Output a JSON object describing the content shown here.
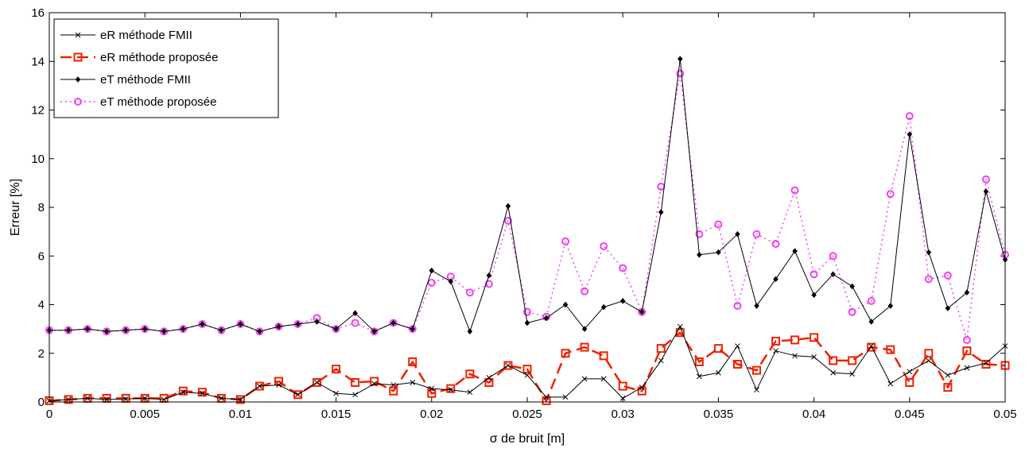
{
  "chart_data": {
    "type": "line",
    "xlabel": "σ de bruit [m]",
    "ylabel": "Erreur [%]",
    "xlim": [
      0,
      0.05
    ],
    "ylim": [
      0,
      16
    ],
    "xticks": [
      0,
      0.005,
      0.01,
      0.015,
      0.02,
      0.025,
      0.03,
      0.035,
      0.04,
      0.045,
      0.05
    ],
    "xtick_labels": [
      "0",
      "0.005",
      "0.01",
      "0.015",
      "0.02",
      "0.025",
      "0.03",
      "0.035",
      "0.04",
      "0.045",
      "0.05"
    ],
    "yticks": [
      0,
      2,
      4,
      6,
      8,
      10,
      12,
      14,
      16
    ],
    "ytick_labels": [
      "0",
      "2",
      "4",
      "6",
      "8",
      "10",
      "12",
      "14",
      "16"
    ],
    "grid": false,
    "legend_position": "top-left",
    "x": [
      0,
      0.001,
      0.002,
      0.003,
      0.004,
      0.005,
      0.006,
      0.007,
      0.008,
      0.009,
      0.01,
      0.011,
      0.012,
      0.013,
      0.014,
      0.015,
      0.016,
      0.017,
      0.018,
      0.019,
      0.02,
      0.021,
      0.022,
      0.023,
      0.024,
      0.025,
      0.026,
      0.027,
      0.028,
      0.029,
      0.03,
      0.031,
      0.032,
      0.033,
      0.034,
      0.035,
      0.036,
      0.037,
      0.038,
      0.039,
      0.04,
      0.041,
      0.042,
      0.043,
      0.044,
      0.045,
      0.046,
      0.047,
      0.048,
      0.049,
      0.05
    ],
    "series": [
      {
        "name": "eR méthode FMII",
        "color": "#000000",
        "marker": "x",
        "line_style": "solid",
        "values": [
          0.05,
          0.1,
          0.15,
          0.1,
          0.12,
          0.15,
          0.1,
          0.4,
          0.35,
          0.15,
          0.1,
          0.65,
          0.7,
          0.3,
          0.8,
          0.35,
          0.3,
          0.75,
          0.7,
          0.8,
          0.55,
          0.5,
          0.4,
          1.0,
          1.5,
          1.1,
          0.2,
          0.2,
          0.95,
          0.95,
          0.15,
          0.6,
          1.7,
          3.1,
          1.05,
          1.2,
          2.3,
          0.5,
          2.1,
          1.9,
          1.85,
          1.2,
          1.15,
          2.3,
          0.75,
          1.25,
          1.7,
          1.1,
          1.4,
          1.6,
          2.3
        ]
      },
      {
        "name": "eR méthode proposée",
        "color": "#ee2200",
        "marker": "square",
        "line_style": "dashed",
        "values": [
          0.05,
          0.1,
          0.15,
          0.15,
          0.15,
          0.15,
          0.15,
          0.45,
          0.4,
          0.15,
          0.1,
          0.65,
          0.85,
          0.3,
          0.8,
          1.35,
          0.8,
          0.85,
          0.45,
          1.65,
          0.35,
          0.55,
          1.15,
          0.8,
          1.5,
          1.35,
          0.05,
          2.0,
          2.25,
          1.9,
          0.65,
          0.45,
          2.2,
          2.85,
          1.65,
          2.2,
          1.55,
          1.3,
          2.5,
          2.55,
          2.65,
          1.7,
          1.7,
          2.25,
          2.15,
          0.8,
          2.0,
          0.6,
          2.1,
          1.55,
          1.5
        ]
      },
      {
        "name": "eT méthode FMII",
        "color": "#000000",
        "marker": "diamond",
        "line_style": "solid",
        "values": [
          2.95,
          2.95,
          3.0,
          2.9,
          2.95,
          3.0,
          2.9,
          3.0,
          3.2,
          2.95,
          3.2,
          2.9,
          3.1,
          3.2,
          3.3,
          3.0,
          3.65,
          2.9,
          3.25,
          3.0,
          5.4,
          4.95,
          2.9,
          5.2,
          8.05,
          3.25,
          3.45,
          4.0,
          3.0,
          3.9,
          4.15,
          3.7,
          7.8,
          14.1,
          6.05,
          6.15,
          6.9,
          3.95,
          5.05,
          6.2,
          4.4,
          5.25,
          4.75,
          3.3,
          3.95,
          11.0,
          6.15,
          3.85,
          4.5,
          8.65,
          5.85
        ]
      },
      {
        "name": "eT méthode proposée",
        "color": "#ee44ee",
        "marker": "circle",
        "line_style": "dotted",
        "values": [
          2.95,
          2.95,
          3.0,
          2.9,
          2.95,
          3.0,
          2.9,
          3.0,
          3.2,
          2.95,
          3.2,
          2.9,
          3.1,
          3.2,
          3.45,
          3.0,
          3.25,
          2.9,
          3.25,
          3.0,
          4.9,
          5.15,
          4.5,
          4.85,
          7.45,
          3.7,
          3.5,
          6.6,
          4.55,
          6.4,
          5.5,
          3.7,
          8.85,
          13.5,
          6.9,
          7.3,
          3.95,
          6.9,
          6.5,
          8.7,
          5.25,
          6.0,
          3.7,
          4.15,
          8.55,
          11.75,
          5.05,
          5.2,
          2.55,
          9.15,
          6.05
        ]
      }
    ]
  }
}
